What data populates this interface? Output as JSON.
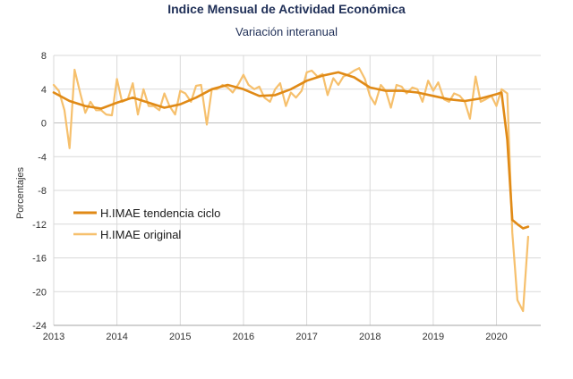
{
  "chart_data": {
    "type": "line",
    "title": "Indice Mensual de  Actividad Económica",
    "subtitle": "Variación interanual",
    "ylabel": "Porcentajes",
    "xlabel": "",
    "ylim": [
      -24,
      8
    ],
    "yticks": [
      8,
      4,
      0,
      -4,
      -8,
      -12,
      -16,
      -20,
      -24
    ],
    "xlim": [
      2013,
      2020.7
    ],
    "xticks": [
      "2013",
      "2014",
      "2015",
      "2016",
      "2017",
      "2018",
      "2019",
      "2020"
    ],
    "grid": true,
    "legend_position": "left-middle",
    "series": [
      {
        "name": "H.IMAE tendencia ciclo",
        "color": "#e08a16",
        "width": 2.6,
        "points": [
          [
            2013.0,
            3.6
          ],
          [
            2013.25,
            2.6
          ],
          [
            2013.5,
            2.0
          ],
          [
            2013.75,
            1.7
          ],
          [
            2014.0,
            2.4
          ],
          [
            2014.25,
            3.0
          ],
          [
            2014.5,
            2.4
          ],
          [
            2014.75,
            1.8
          ],
          [
            2015.0,
            2.2
          ],
          [
            2015.25,
            3.0
          ],
          [
            2015.5,
            4.0
          ],
          [
            2015.75,
            4.5
          ],
          [
            2016.0,
            4.0
          ],
          [
            2016.25,
            3.2
          ],
          [
            2016.5,
            3.3
          ],
          [
            2016.75,
            4.0
          ],
          [
            2017.0,
            5.0
          ],
          [
            2017.25,
            5.6
          ],
          [
            2017.5,
            6.0
          ],
          [
            2017.75,
            5.4
          ],
          [
            2018.0,
            4.2
          ],
          [
            2018.25,
            3.8
          ],
          [
            2018.5,
            3.8
          ],
          [
            2018.75,
            3.6
          ],
          [
            2019.0,
            3.2
          ],
          [
            2019.25,
            2.8
          ],
          [
            2019.5,
            2.6
          ],
          [
            2019.75,
            2.9
          ],
          [
            2020.0,
            3.4
          ],
          [
            2020.08,
            3.6
          ],
          [
            2020.17,
            -2.0
          ],
          [
            2020.25,
            -11.5
          ],
          [
            2020.33,
            -12.0
          ],
          [
            2020.42,
            -12.5
          ],
          [
            2020.5,
            -12.3
          ]
        ]
      },
      {
        "name": "H.IMAE original",
        "color": "#f6c06d",
        "width": 2.2,
        "points": [
          [
            2013.0,
            4.5
          ],
          [
            2013.08,
            3.8
          ],
          [
            2013.17,
            1.5
          ],
          [
            2013.25,
            -3.0
          ],
          [
            2013.33,
            6.3
          ],
          [
            2013.42,
            3.5
          ],
          [
            2013.5,
            1.2
          ],
          [
            2013.58,
            2.5
          ],
          [
            2013.67,
            1.5
          ],
          [
            2013.75,
            1.5
          ],
          [
            2013.83,
            1.0
          ],
          [
            2013.92,
            0.9
          ],
          [
            2014.0,
            5.2
          ],
          [
            2014.08,
            2.5
          ],
          [
            2014.17,
            2.8
          ],
          [
            2014.25,
            4.7
          ],
          [
            2014.33,
            1.0
          ],
          [
            2014.42,
            4.0
          ],
          [
            2014.5,
            2.0
          ],
          [
            2014.58,
            2.0
          ],
          [
            2014.67,
            1.5
          ],
          [
            2014.75,
            3.5
          ],
          [
            2014.83,
            2.0
          ],
          [
            2014.92,
            1.0
          ],
          [
            2015.0,
            3.8
          ],
          [
            2015.08,
            3.5
          ],
          [
            2015.17,
            2.5
          ],
          [
            2015.25,
            4.4
          ],
          [
            2015.33,
            4.5
          ],
          [
            2015.42,
            -0.2
          ],
          [
            2015.5,
            4.0
          ],
          [
            2015.58,
            4.0
          ],
          [
            2015.67,
            4.5
          ],
          [
            2015.75,
            4.2
          ],
          [
            2015.83,
            3.6
          ],
          [
            2015.92,
            4.6
          ],
          [
            2016.0,
            5.7
          ],
          [
            2016.08,
            4.5
          ],
          [
            2016.17,
            4.0
          ],
          [
            2016.25,
            4.3
          ],
          [
            2016.33,
            3.0
          ],
          [
            2016.42,
            2.5
          ],
          [
            2016.5,
            4.0
          ],
          [
            2016.58,
            4.7
          ],
          [
            2016.67,
            2.0
          ],
          [
            2016.75,
            3.6
          ],
          [
            2016.83,
            3.0
          ],
          [
            2016.92,
            3.8
          ],
          [
            2017.0,
            6.0
          ],
          [
            2017.08,
            6.2
          ],
          [
            2017.17,
            5.5
          ],
          [
            2017.25,
            5.8
          ],
          [
            2017.33,
            3.3
          ],
          [
            2017.42,
            5.3
          ],
          [
            2017.5,
            4.5
          ],
          [
            2017.58,
            5.5
          ],
          [
            2017.67,
            5.8
          ],
          [
            2017.75,
            6.2
          ],
          [
            2017.83,
            6.5
          ],
          [
            2017.92,
            5.2
          ],
          [
            2018.0,
            3.2
          ],
          [
            2018.08,
            2.2
          ],
          [
            2018.17,
            4.5
          ],
          [
            2018.25,
            3.8
          ],
          [
            2018.33,
            1.8
          ],
          [
            2018.42,
            4.5
          ],
          [
            2018.5,
            4.3
          ],
          [
            2018.58,
            3.5
          ],
          [
            2018.67,
            4.2
          ],
          [
            2018.75,
            4.0
          ],
          [
            2018.83,
            2.5
          ],
          [
            2018.92,
            5.0
          ],
          [
            2019.0,
            3.8
          ],
          [
            2019.08,
            4.8
          ],
          [
            2019.17,
            2.8
          ],
          [
            2019.25,
            2.5
          ],
          [
            2019.33,
            3.5
          ],
          [
            2019.42,
            3.2
          ],
          [
            2019.5,
            2.5
          ],
          [
            2019.58,
            0.5
          ],
          [
            2019.67,
            5.5
          ],
          [
            2019.75,
            2.5
          ],
          [
            2019.83,
            2.8
          ],
          [
            2019.92,
            3.2
          ],
          [
            2020.0,
            2.0
          ],
          [
            2020.08,
            4.0
          ],
          [
            2020.17,
            3.5
          ],
          [
            2020.25,
            -13.0
          ],
          [
            2020.33,
            -21.0
          ],
          [
            2020.42,
            -22.3
          ],
          [
            2020.5,
            -13.5
          ]
        ]
      }
    ]
  }
}
